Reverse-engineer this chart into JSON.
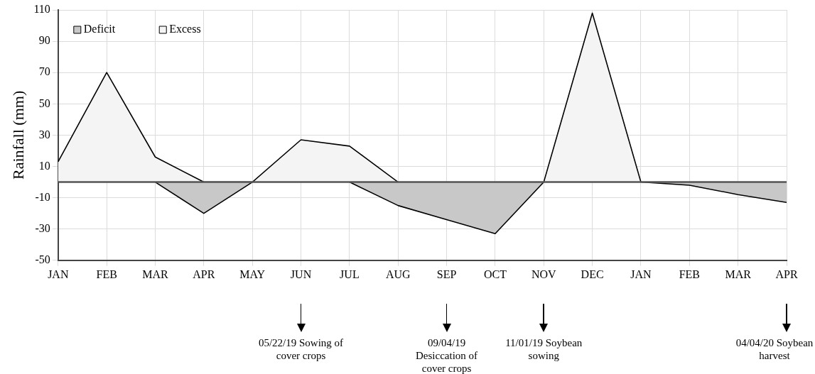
{
  "chart_data": {
    "type": "area",
    "ylabel": "Rainfall (mm)",
    "categories": [
      "JAN",
      "FEB",
      "MAR",
      "APR",
      "MAY",
      "JUN",
      "JUL",
      "AUG",
      "SEP",
      "OCT",
      "NOV",
      "DEC",
      "JAN",
      "FEB",
      "MAR",
      "APR"
    ],
    "series": [
      {
        "name": "Deficit",
        "color": "#c8c8c8",
        "values": [
          null,
          null,
          0,
          -20,
          0,
          null,
          0,
          -15,
          -24,
          -33,
          0,
          null,
          0,
          -2,
          -8,
          -13
        ]
      },
      {
        "name": "Excess",
        "color": "#f4f4f4",
        "values": [
          13,
          70,
          16,
          0,
          0,
          27,
          23,
          0,
          null,
          null,
          0,
          108,
          0,
          null,
          null,
          null
        ]
      }
    ],
    "ylim": [
      -50,
      110
    ],
    "yticks": [
      -50,
      -30,
      -10,
      10,
      30,
      50,
      70,
      90,
      110
    ],
    "grid": true,
    "legend": "top left",
    "marker": "none",
    "annotations": [
      "05/22/19  Sowing of cover crops",
      "09/04/19 Desiccation of cover crops",
      "11/01/19 Soybean sowing",
      "04/04/20 Soybean harvest"
    ]
  }
}
